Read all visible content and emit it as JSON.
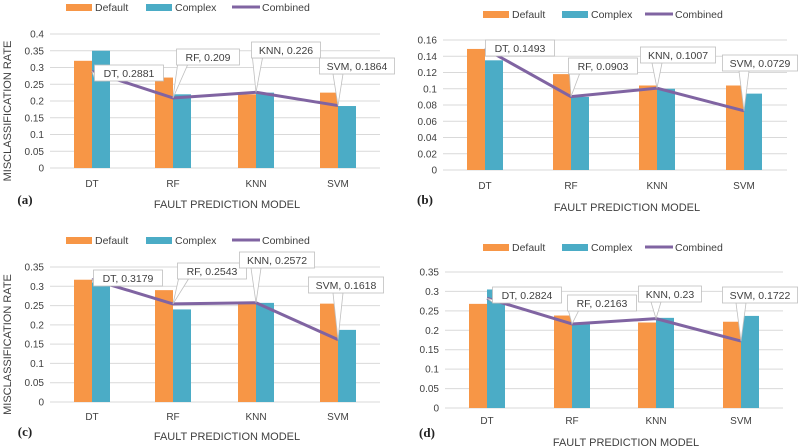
{
  "chart_data": [
    {
      "type": "bar+line",
      "panel_label": "(a)",
      "xlabel": "FAULT PREDICTION MODEL",
      "ylabel": "MISCLASSIFICATION RATE",
      "categories": [
        "DT",
        "RF",
        "KNN",
        "SVM"
      ],
      "ylim": [
        0,
        0.4
      ],
      "yticks": [
        "0",
        "0.05",
        "0.1",
        "0.15",
        "0.2",
        "0.25",
        "0.3",
        "0.35",
        "0.4"
      ],
      "grid": true,
      "legend": "top",
      "series": [
        {
          "name": "Default",
          "kind": "bar",
          "color": "#F79646",
          "values": [
            0.32,
            0.27,
            0.22,
            0.225
          ]
        },
        {
          "name": "Complex",
          "kind": "bar",
          "color": "#4BACC6",
          "values": [
            0.35,
            0.22,
            0.225,
            0.185
          ]
        },
        {
          "name": "Combined",
          "kind": "line",
          "color": "#8064A2",
          "values": [
            0.2881,
            0.209,
            0.226,
            0.1864
          ],
          "labels": [
            "DT, 0.2881",
            "RF, 0.209",
            "KNN, 0.226",
            "SVM, 0.1864"
          ]
        }
      ]
    },
    {
      "type": "bar+line",
      "panel_label": "(b)",
      "xlabel": "FAULT PREDICTION MODEL",
      "ylabel": "",
      "categories": [
        "DT",
        "RF",
        "KNN",
        "SVM"
      ],
      "ylim": [
        0,
        0.16
      ],
      "yticks": [
        "0",
        "0.02",
        "0.04",
        "0.06",
        "0.08",
        "0.1",
        "0.12",
        "0.14",
        "0.16"
      ],
      "grid": true,
      "legend": "top",
      "series": [
        {
          "name": "Default",
          "kind": "bar",
          "color": "#F79646",
          "values": [
            0.149,
            0.118,
            0.104,
            0.104
          ]
        },
        {
          "name": "Complex",
          "kind": "bar",
          "color": "#4BACC6",
          "values": [
            0.135,
            0.09,
            0.1,
            0.094
          ]
        },
        {
          "name": "Combined",
          "kind": "line",
          "color": "#8064A2",
          "values": [
            0.1493,
            0.0903,
            0.1007,
            0.0729
          ],
          "labels": [
            "DT, 0.1493",
            "RF, 0.0903",
            "KNN, 0.1007",
            "SVM, 0.0729"
          ]
        }
      ]
    },
    {
      "type": "bar+line",
      "panel_label": "(c)",
      "xlabel": "FAULT PREDICTION MODEL",
      "ylabel": "MISCLASSIFICATION RATE",
      "categories": [
        "DT",
        "RF",
        "KNN",
        "SVM"
      ],
      "ylim": [
        0,
        0.35
      ],
      "yticks": [
        "0",
        "0.05",
        "0.1",
        "0.15",
        "0.2",
        "0.25",
        "0.3",
        "0.35"
      ],
      "grid": true,
      "legend": "top",
      "series": [
        {
          "name": "Default",
          "kind": "bar",
          "color": "#F79646",
          "values": [
            0.317,
            0.29,
            0.255,
            0.255
          ]
        },
        {
          "name": "Complex",
          "kind": "bar",
          "color": "#4BACC6",
          "values": [
            0.31,
            0.24,
            0.257,
            0.187
          ]
        },
        {
          "name": "Combined",
          "kind": "line",
          "color": "#8064A2",
          "values": [
            0.3179,
            0.2543,
            0.2572,
            0.1618
          ],
          "labels": [
            "DT, 0.3179",
            "RF, 0.2543",
            "KNN, 0.2572",
            "SVM, 0.1618"
          ]
        }
      ]
    },
    {
      "type": "bar+line",
      "panel_label": "(d)",
      "xlabel": "FAULT PREDICTION MODEL",
      "ylabel": "",
      "categories": [
        "DT",
        "RF",
        "KNN",
        "SVM"
      ],
      "ylim": [
        0,
        0.35
      ],
      "yticks": [
        "0",
        "0.05",
        "0.1",
        "0.15",
        "0.2",
        "0.25",
        "0.3",
        "0.35"
      ],
      "grid": true,
      "legend": "top",
      "series": [
        {
          "name": "Default",
          "kind": "bar",
          "color": "#F79646",
          "values": [
            0.268,
            0.238,
            0.22,
            0.222
          ]
        },
        {
          "name": "Complex",
          "kind": "bar",
          "color": "#4BACC6",
          "values": [
            0.305,
            0.216,
            0.232,
            0.237
          ]
        },
        {
          "name": "Combined",
          "kind": "line",
          "color": "#8064A2",
          "values": [
            0.2824,
            0.2163,
            0.23,
            0.1722
          ],
          "labels": [
            "DT, 0.2824",
            "RF, 0.2163",
            "KNN, 0.23",
            "SVM, 0.1722"
          ]
        }
      ]
    }
  ]
}
